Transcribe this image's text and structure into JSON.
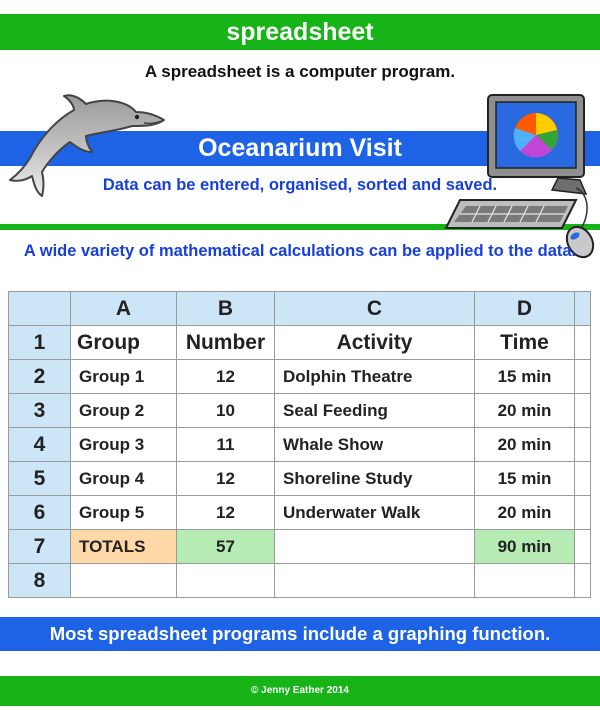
{
  "header": {
    "title": "spreadsheet"
  },
  "intro": "A spreadsheet is a computer program.",
  "banner": {
    "title": "Oceanarium Visit",
    "subtitle": "Data can be entered, organised, sorted and saved."
  },
  "calc_note": "A wide variety of mathematical calculations can be applied to the data.",
  "sheet": {
    "columns": [
      "A",
      "B",
      "C",
      "D"
    ],
    "row_numbers": [
      "1",
      "2",
      "3",
      "4",
      "5",
      "6",
      "7",
      "8"
    ],
    "headers": [
      "Group",
      "Number",
      "Activity",
      "Time"
    ],
    "rows": [
      [
        "Group 1",
        "12",
        "Dolphin Theatre",
        "15 min"
      ],
      [
        "Group 2",
        "10",
        "Seal Feeding",
        "20 min"
      ],
      [
        "Group 3",
        "11",
        "Whale Show",
        "20 min"
      ],
      [
        "Group 4",
        "12",
        "Shoreline Study",
        "15 min"
      ],
      [
        "Group 5",
        "12",
        "Underwater Walk",
        "20 min"
      ]
    ],
    "totals": [
      "TOTALS",
      "57",
      "",
      "90 min"
    ]
  },
  "graph_note": "Most spreadsheet programs include a graphing function.",
  "footer": "© Jenny Eather 2014",
  "colors": {
    "green": "#16b416",
    "blue": "#1e63e6",
    "blue_text": "#1740d8",
    "header_cell": "#cde6f7",
    "totals_orange": "#ffd8a8",
    "totals_green": "#b6ecb4"
  },
  "icons": [
    "dolphin-icon",
    "computer-icon",
    "pie-chart-icon",
    "keyboard-icon",
    "mouse-icon"
  ]
}
